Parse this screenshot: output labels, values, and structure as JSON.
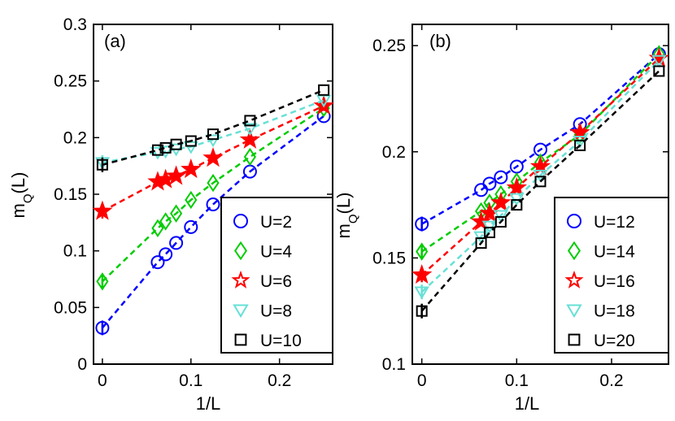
{
  "chart_data": [
    {
      "type": "line",
      "panel": "(a)",
      "xlabel": "1/L",
      "ylabel": "m_Q(L)",
      "ylabel_main": "m",
      "ylabel_sub": "Q",
      "ylabel_tail": "(L)",
      "xlim": [
        -0.01,
        0.26
      ],
      "ylim": [
        0,
        0.3
      ],
      "xticks": [
        0,
        0.1,
        0.2
      ],
      "xtick_labels": [
        "0",
        "0.1",
        "0.2"
      ],
      "yticks": [
        0,
        0.05,
        0.1,
        0.15,
        0.2,
        0.25,
        0.3
      ],
      "ytick_labels": [
        "0",
        "0.05",
        "0.1",
        "0.15",
        "0.2",
        "0.25",
        "0.3"
      ],
      "legend_position": "bottom-right",
      "series": [
        {
          "name": "U=2",
          "marker": "circle",
          "color": "#0000ff",
          "x": [
            0,
            0.0625,
            0.0714,
            0.0833,
            0.1,
            0.125,
            0.1667,
            0.25
          ],
          "y": [
            0.032,
            0.09,
            0.097,
            0.107,
            0.121,
            0.141,
            0.17,
            0.219
          ]
        },
        {
          "name": "U=4",
          "marker": "diamond",
          "color": "#00cc00",
          "x": [
            0,
            0.0625,
            0.0714,
            0.0833,
            0.1,
            0.125,
            0.1667,
            0.25
          ],
          "y": [
            0.073,
            0.12,
            0.126,
            0.133,
            0.145,
            0.16,
            0.183,
            0.226
          ]
        },
        {
          "name": "U=6",
          "marker": "star",
          "color": "#ff0000",
          "x": [
            0,
            0.0625,
            0.0714,
            0.0833,
            0.1,
            0.125,
            0.1667,
            0.25
          ],
          "y": [
            0.135,
            0.161,
            0.163,
            0.166,
            0.172,
            0.182,
            0.198,
            0.228
          ]
        },
        {
          "name": "U=8",
          "marker": "triangle-down",
          "color": "#66e0d6",
          "x": [
            0,
            0.0625,
            0.0714,
            0.0833,
            0.1,
            0.125,
            0.1667,
            0.25
          ],
          "y": [
            0.178,
            0.187,
            0.188,
            0.19,
            0.192,
            0.198,
            0.208,
            0.233
          ]
        },
        {
          "name": "U=10",
          "marker": "square",
          "color": "#000000",
          "x": [
            0,
            0.0625,
            0.0714,
            0.0833,
            0.1,
            0.125,
            0.1667,
            0.25
          ],
          "y": [
            0.176,
            0.189,
            0.191,
            0.194,
            0.197,
            0.203,
            0.215,
            0.242
          ]
        }
      ]
    },
    {
      "type": "line",
      "panel": "(b)",
      "xlabel": "1/L",
      "ylabel": "m_Q(L)",
      "ylabel_main": "m",
      "ylabel_sub": "Q",
      "ylabel_tail": "(L)",
      "xlim": [
        -0.01,
        0.26
      ],
      "ylim": [
        0.1,
        0.26
      ],
      "xticks": [
        0,
        0.1,
        0.2
      ],
      "xtick_labels": [
        "0",
        "0.1",
        "0.2"
      ],
      "yticks": [
        0.1,
        0.15,
        0.2,
        0.25
      ],
      "ytick_labels": [
        "0.1",
        "0.15",
        "0.2",
        "0.25"
      ],
      "legend_position": "bottom-right",
      "series": [
        {
          "name": "U=12",
          "marker": "circle",
          "color": "#0000ff",
          "x": [
            0,
            0.0625,
            0.0714,
            0.0833,
            0.1,
            0.125,
            0.1667,
            0.25
          ],
          "y": [
            0.166,
            0.182,
            0.185,
            0.188,
            0.193,
            0.201,
            0.213,
            0.246
          ]
        },
        {
          "name": "U=14",
          "marker": "diamond",
          "color": "#00cc00",
          "x": [
            0,
            0.0625,
            0.0714,
            0.0833,
            0.1,
            0.125,
            0.1667,
            0.25
          ],
          "y": [
            0.153,
            0.172,
            0.176,
            0.18,
            0.186,
            0.195,
            0.208,
            0.246
          ]
        },
        {
          "name": "U=16",
          "marker": "star",
          "color": "#ff0000",
          "x": [
            0,
            0.0625,
            0.0714,
            0.0833,
            0.1,
            0.125,
            0.1667,
            0.25
          ],
          "y": [
            0.142,
            0.167,
            0.171,
            0.176,
            0.183,
            0.193,
            0.209,
            0.244
          ]
        },
        {
          "name": "U=18",
          "marker": "triangle-down",
          "color": "#66e0d6",
          "x": [
            0,
            0.0625,
            0.0714,
            0.0833,
            0.1,
            0.125,
            0.1667,
            0.25
          ],
          "y": [
            0.134,
            0.16,
            0.165,
            0.17,
            0.178,
            0.189,
            0.205,
            0.243
          ]
        },
        {
          "name": "U=20",
          "marker": "square",
          "color": "#000000",
          "x": [
            0,
            0.0625,
            0.0714,
            0.0833,
            0.1,
            0.125,
            0.1667,
            0.25
          ],
          "y": [
            0.125,
            0.157,
            0.162,
            0.167,
            0.175,
            0.186,
            0.203,
            0.238
          ]
        }
      ]
    }
  ]
}
